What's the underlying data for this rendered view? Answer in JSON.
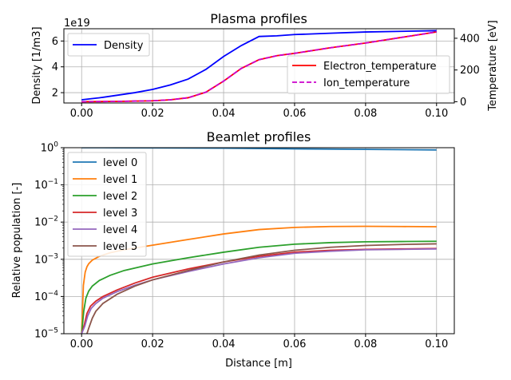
{
  "chart_data": [
    {
      "type": "line",
      "title": "Plasma profiles",
      "xlabel": "",
      "ylabel": "Density [1/m3]",
      "ylabel_color": "#0000ff",
      "ylabel_right": "Temperature [eV]",
      "ylabel_right_color": "#ff0000",
      "offset_label": "1e19",
      "xlim": [
        -0.005,
        0.105
      ],
      "ylim": [
        1.2,
        6.95
      ],
      "ylim_right": [
        -8,
        460
      ],
      "x_ticks": [
        0.0,
        0.02,
        0.04,
        0.06,
        0.08,
        0.1
      ],
      "x_tick_labels": [
        "0.00",
        "0.02",
        "0.04",
        "0.06",
        "0.08",
        "0.10"
      ],
      "y_ticks": [
        2,
        4,
        6
      ],
      "y_tick_labels": [
        "2",
        "4",
        "6"
      ],
      "y_right_ticks": [
        0,
        200,
        400
      ],
      "y_right_tick_labels": [
        "0",
        "200",
        "400"
      ],
      "grid": true,
      "legend_left": {
        "placement": "upper-left",
        "entries": [
          "Density"
        ]
      },
      "legend_right": {
        "placement": "center-right",
        "entries": [
          "Electron_temperature",
          "Ion_temperature"
        ]
      },
      "series": [
        {
          "name": "Density",
          "axis": "left",
          "color": "#0000ff",
          "dash": "solid",
          "x": [
            0.0,
            0.005,
            0.01,
            0.015,
            0.02,
            0.025,
            0.03,
            0.035,
            0.04,
            0.045,
            0.05,
            0.055,
            0.06,
            0.07,
            0.08,
            0.09,
            0.1
          ],
          "y": [
            1.45,
            1.6,
            1.8,
            2.0,
            2.25,
            2.6,
            3.05,
            3.8,
            4.8,
            5.65,
            6.35,
            6.4,
            6.5,
            6.6,
            6.7,
            6.75,
            6.8
          ]
        },
        {
          "name": "Electron_temperature",
          "axis": "right",
          "color": "#ff0000",
          "dash": "solid",
          "x": [
            0.0,
            0.01,
            0.02,
            0.025,
            0.03,
            0.035,
            0.04,
            0.045,
            0.05,
            0.055,
            0.06,
            0.07,
            0.08,
            0.09,
            0.1
          ],
          "y": [
            0,
            2,
            6,
            12,
            25,
            60,
            130,
            210,
            265,
            290,
            305,
            340,
            370,
            405,
            440
          ]
        },
        {
          "name": "Ion_temperature",
          "axis": "right",
          "color": "#cc00cc",
          "dash": "dashed",
          "x": [
            0.0,
            0.01,
            0.02,
            0.025,
            0.03,
            0.035,
            0.04,
            0.045,
            0.05,
            0.055,
            0.06,
            0.07,
            0.08,
            0.09,
            0.1
          ],
          "y": [
            0,
            2,
            6,
            12,
            25,
            60,
            130,
            210,
            265,
            290,
            305,
            340,
            370,
            405,
            440
          ]
        }
      ]
    },
    {
      "type": "line",
      "title": "Beamlet profiles",
      "xlabel": "Distance [m]",
      "ylabel": "Relative population [-]",
      "log_y": true,
      "xlim": [
        -0.005,
        0.105
      ],
      "ylim": [
        1e-05,
        1
      ],
      "x_ticks": [
        0.0,
        0.02,
        0.04,
        0.06,
        0.08,
        0.1
      ],
      "x_tick_labels": [
        "0.00",
        "0.02",
        "0.04",
        "0.06",
        "0.08",
        "0.10"
      ],
      "y_ticks": [
        1e-05,
        0.0001,
        0.001,
        0.01,
        0.1,
        1
      ],
      "y_tick_labels": [
        [
          "10",
          "−5"
        ],
        [
          "10",
          "−4"
        ],
        [
          "10",
          "−3"
        ],
        [
          "10",
          "−2"
        ],
        [
          "10",
          "−1"
        ],
        [
          "10",
          "0"
        ]
      ],
      "grid": true,
      "legend": {
        "placement": "upper-left",
        "entries": [
          "level 0",
          "level 1",
          "level 2",
          "level 3",
          "level 4",
          "level 5"
        ]
      },
      "series": [
        {
          "name": "level 0",
          "color": "#1f77b4",
          "x": [
            0.0,
            0.01,
            0.02,
            0.04,
            0.06,
            0.08,
            0.1
          ],
          "y": [
            1.0,
            0.998,
            0.99,
            0.97,
            0.93,
            0.9,
            0.87
          ]
        },
        {
          "name": "level 1",
          "color": "#ff7f0e",
          "x": [
            0.0,
            0.0005,
            0.001,
            0.0015,
            0.002,
            0.003,
            0.005,
            0.008,
            0.012,
            0.02,
            0.03,
            0.04,
            0.05,
            0.06,
            0.07,
            0.08,
            0.09,
            0.1
          ],
          "y": [
            1e-05,
            0.0002,
            0.00045,
            0.00063,
            0.00076,
            0.00095,
            0.0012,
            0.0015,
            0.0018,
            0.0024,
            0.0034,
            0.0048,
            0.0063,
            0.0072,
            0.0076,
            0.0077,
            0.0076,
            0.0075
          ]
        },
        {
          "name": "level 2",
          "color": "#2ca02c",
          "x": [
            0.0,
            0.0006,
            0.0012,
            0.002,
            0.003,
            0.005,
            0.008,
            0.012,
            0.02,
            0.03,
            0.04,
            0.05,
            0.06,
            0.07,
            0.08,
            0.09,
            0.1
          ],
          "y": [
            1e-05,
            4e-05,
            9e-05,
            0.00014,
            0.00019,
            0.00027,
            0.00037,
            0.0005,
            0.00075,
            0.0011,
            0.00155,
            0.0021,
            0.00255,
            0.0028,
            0.00295,
            0.003,
            0.00305
          ]
        },
        {
          "name": "level 3",
          "color": "#d62728",
          "x": [
            0.0,
            0.0008,
            0.0015,
            0.0025,
            0.004,
            0.006,
            0.01,
            0.015,
            0.02,
            0.03,
            0.04,
            0.05,
            0.06,
            0.07,
            0.08,
            0.09,
            0.1
          ],
          "y": [
            1e-05,
            1.8e-05,
            3.5e-05,
            5.5e-05,
            7.5e-05,
            0.0001,
            0.00015,
            0.00023,
            0.00033,
            0.00055,
            0.00085,
            0.0012,
            0.00155,
            0.00175,
            0.00185,
            0.0019,
            0.00195
          ]
        },
        {
          "name": "level 4",
          "color": "#9467bd",
          "x": [
            0.0,
            0.0009,
            0.0017,
            0.0027,
            0.004,
            0.006,
            0.01,
            0.015,
            0.02,
            0.03,
            0.04,
            0.05,
            0.06,
            0.07,
            0.08,
            0.09,
            0.1
          ],
          "y": [
            1e-05,
            1.6e-05,
            3e-05,
            4.8e-05,
            6.5e-05,
            9e-05,
            0.000135,
            0.0002,
            0.00028,
            0.00047,
            0.00075,
            0.0011,
            0.00145,
            0.00165,
            0.0018,
            0.00185,
            0.0019
          ]
        },
        {
          "name": "level 5",
          "color": "#8c564b",
          "x": [
            0.0015,
            0.002,
            0.003,
            0.004,
            0.006,
            0.01,
            0.015,
            0.02,
            0.03,
            0.04,
            0.05,
            0.06,
            0.07,
            0.08,
            0.09,
            0.1
          ],
          "y": [
            1e-05,
            1.4e-05,
            2.6e-05,
            4e-05,
            6.5e-05,
            0.000115,
            0.00019,
            0.00028,
            0.0005,
            0.00085,
            0.0013,
            0.00175,
            0.0021,
            0.00235,
            0.0025,
            0.0026
          ]
        }
      ]
    }
  ]
}
